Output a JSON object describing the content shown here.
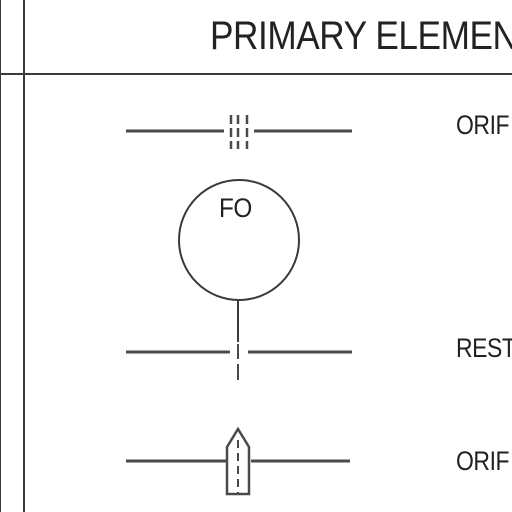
{
  "header": {
    "title": "PRIMARY ELEMEN"
  },
  "symbols": [
    {
      "id": "orifice",
      "label": "ORIF"
    },
    {
      "id": "flow-orifice-bubble",
      "tag": "FO"
    },
    {
      "id": "restriction",
      "label": "REST"
    },
    {
      "id": "orifice-fitting",
      "label": "ORIF"
    }
  ],
  "colors": {
    "ink": "#222222",
    "line": "#4a4a4a",
    "paper": "#ffffff"
  }
}
